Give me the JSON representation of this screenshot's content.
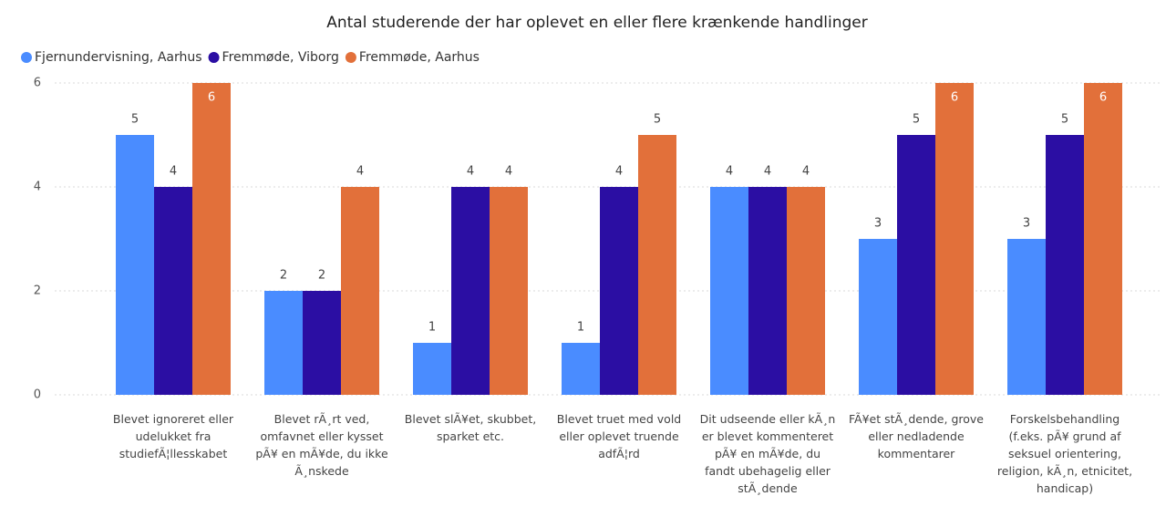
{
  "chart_data": {
    "type": "bar",
    "title": "Antal studerende der har oplevet en eller flere krænkende handlinger",
    "categories": [
      "Blevet ignoreret eller udelukket fra studiefÃ¦llesskabet",
      "Blevet rÃ¸rt ved, omfavnet eller kysset pÃ¥ en mÃ¥de, du ikke Ã¸nskede",
      "Blevet slÃ¥et, skubbet, sparket etc.",
      "Blevet truet med vold eller oplevet truende adfÃ¦rd",
      "Dit udseende eller kÃ¸n er blevet kommenteret pÃ¥ en mÃ¥de, du fandt ubehagelig eller stÃ¸dende",
      "FÃ¥et stÃ¸dende, grove eller nedladende kommentarer",
      "Forskelsbehandling (f.eks. pÃ¥ grund af seksuel orientering, religion, kÃ¸n, etnicitet, handicap)"
    ],
    "series": [
      {
        "name": "Fjernundervisning, Aarhus",
        "color": "#4a8cff",
        "values": [
          5,
          2,
          1,
          1,
          4,
          3,
          3
        ]
      },
      {
        "name": "Fremmøde, Viborg",
        "color": "#2b0ea3",
        "values": [
          4,
          2,
          4,
          4,
          4,
          5,
          5
        ]
      },
      {
        "name": "Fremmøde, Aarhus",
        "color": "#e2703a",
        "values": [
          6,
          4,
          4,
          5,
          4,
          6,
          6
        ]
      }
    ],
    "ylim": [
      0,
      6
    ],
    "yticks": [
      0,
      2,
      4,
      6
    ],
    "grid": true,
    "legend": "top-left"
  }
}
